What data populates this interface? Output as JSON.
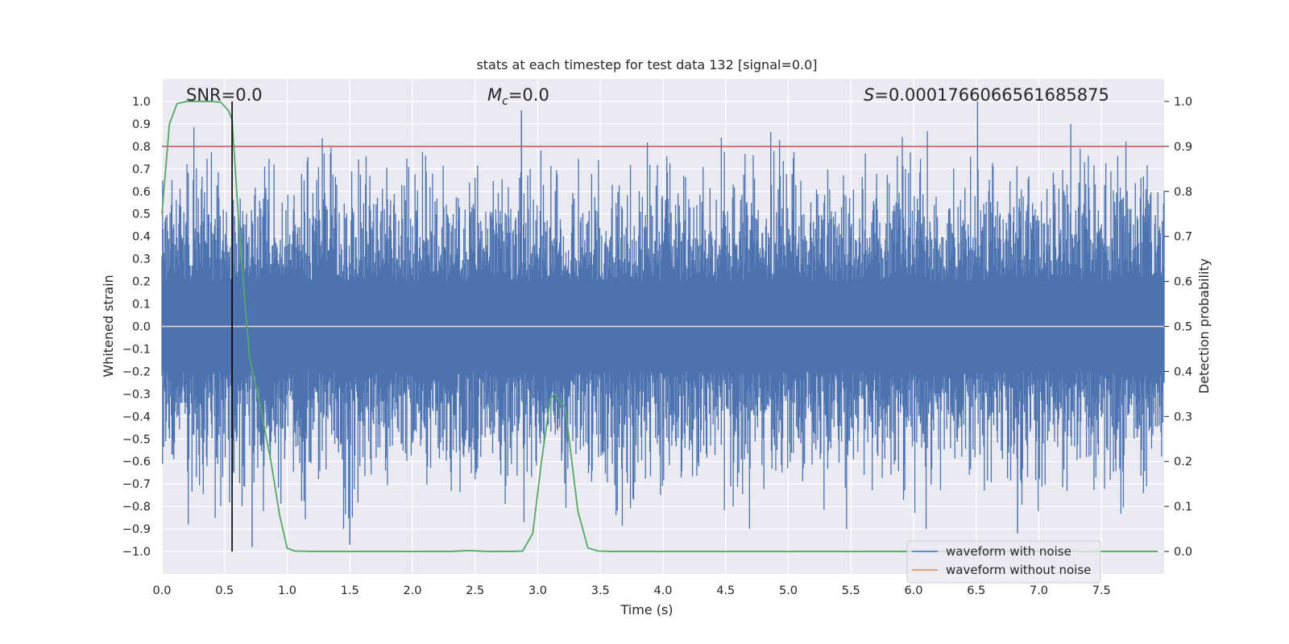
{
  "chart_data": {
    "type": "line",
    "title": "stats at each timestep for test data 132 [signal=0.0]",
    "xlabel": "Time (s)",
    "ylabel_left": "Whitened strain",
    "ylabel_right": "Detection probability",
    "xlim": [
      0.0,
      8.0
    ],
    "ylim_left": [
      -1.1,
      1.1
    ],
    "ylim_right": [
      -0.05,
      1.05
    ],
    "grid": true,
    "x_ticks": [
      "0.0",
      "0.5",
      "1.0",
      "1.5",
      "2.0",
      "2.5",
      "3.0",
      "3.5",
      "4.0",
      "4.5",
      "5.0",
      "5.5",
      "6.0",
      "6.5",
      "7.0",
      "7.5"
    ],
    "x_tick_values": [
      0.0,
      0.5,
      1.0,
      1.5,
      2.0,
      2.5,
      3.0,
      3.5,
      4.0,
      4.5,
      5.0,
      5.5,
      6.0,
      6.5,
      7.0,
      7.5
    ],
    "y_ticks_left": [
      "1.0",
      "0.9",
      "0.8",
      "0.7",
      "0.6",
      "0.5",
      "0.4",
      "0.3",
      "0.2",
      "0.1",
      "0.0",
      "−0.1",
      "−0.2",
      "−0.3",
      "−0.4",
      "−0.5",
      "−0.6",
      "−0.7",
      "−0.8",
      "−0.9",
      "−1.0"
    ],
    "y_tick_values_left": [
      1.0,
      0.9,
      0.8,
      0.7,
      0.6,
      0.5,
      0.4,
      0.3,
      0.2,
      0.1,
      0.0,
      -0.1,
      -0.2,
      -0.3,
      -0.4,
      -0.5,
      -0.6,
      -0.7,
      -0.8,
      -0.9,
      -1.0
    ],
    "y_ticks_right": [
      "1.0",
      "0.9",
      "0.8",
      "0.7",
      "0.6",
      "0.5",
      "0.4",
      "0.3",
      "0.2",
      "0.1",
      "0.0"
    ],
    "y_tick_values_right": [
      1.0,
      0.9,
      0.8,
      0.7,
      0.6,
      0.5,
      0.4,
      0.3,
      0.2,
      0.1,
      0.0
    ],
    "annotations": {
      "snr": "SNR=0.0",
      "mc_symbol": "M",
      "mc_subscript": "c",
      "mc_value": "=0.0",
      "s_symbol": "S",
      "s_value": "=0.0001766066561685875"
    },
    "threshold_probability": 0.9,
    "marker_time": 0.56,
    "noise_amplitude_envelope": 0.45,
    "legend": {
      "position": "lower-right",
      "entries": [
        {
          "name": "waveform with noise",
          "color": "#4c72b0"
        },
        {
          "name": "waveform without noise",
          "color": "#dd8452"
        }
      ]
    },
    "series": [
      {
        "name": "waveform with noise",
        "axis": "left",
        "style": "dense-noise",
        "color": "#4c72b0",
        "peaks": [
          [
            2.87,
            0.96
          ],
          [
            6.51,
            1.0
          ],
          [
            6.83,
            -0.92
          ],
          [
            0.72,
            -0.98
          ],
          [
            1.5,
            -0.97
          ]
        ]
      },
      {
        "name": "waveform without noise",
        "axis": "left",
        "color": "#dd8452",
        "x": [
          0.0,
          8.0
        ],
        "y": [
          0.0,
          0.0
        ]
      },
      {
        "name": "detection probability",
        "axis": "right",
        "color": "#55a868",
        "x": [
          0.0,
          0.06,
          0.12,
          0.2,
          0.3,
          0.4,
          0.47,
          0.53,
          0.56,
          0.62,
          0.7,
          0.78,
          0.87,
          0.94,
          1.0,
          1.06,
          1.2,
          1.5,
          2.0,
          2.3,
          2.45,
          2.6,
          2.8,
          2.88,
          2.96,
          3.03,
          3.1,
          3.13,
          3.22,
          3.32,
          3.4,
          3.48,
          3.6,
          4.0,
          5.0,
          6.0,
          7.0,
          7.95
        ],
        "y": [
          0.75,
          0.95,
          0.995,
          1.0,
          1.0,
          1.0,
          0.998,
          0.98,
          0.96,
          0.7,
          0.43,
          0.33,
          0.2,
          0.08,
          0.007,
          0.001,
          0.0,
          0.0,
          0.0,
          0.0,
          0.002,
          0.0,
          0.0,
          0.001,
          0.04,
          0.2,
          0.34,
          0.35,
          0.32,
          0.09,
          0.008,
          0.001,
          0.0,
          0.0,
          0.0,
          0.0,
          0.0,
          0.0
        ]
      },
      {
        "name": "threshold",
        "axis": "right",
        "color": "#c44e52",
        "x": [
          0.0,
          8.0
        ],
        "y": [
          0.9,
          0.9
        ]
      }
    ]
  }
}
